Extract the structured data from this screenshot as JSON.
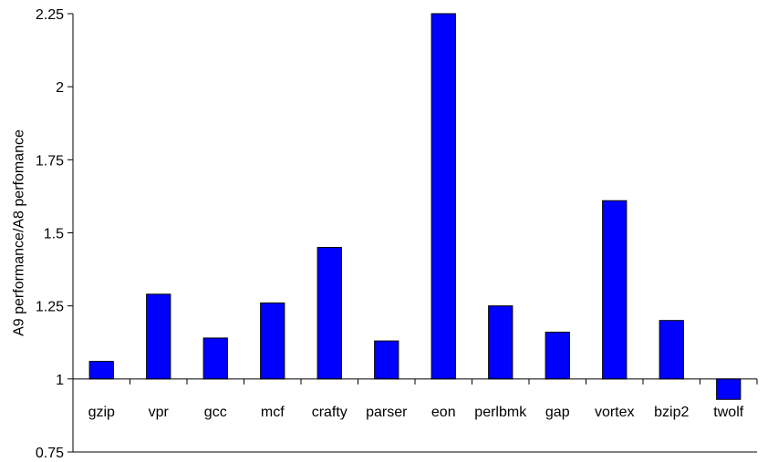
{
  "chart_data": {
    "type": "bar",
    "title": "",
    "xlabel": "",
    "ylabel": "A9 performance/A8 perfomance",
    "ylim": [
      0.75,
      2.25
    ],
    "baseline": 1,
    "yticks": [
      0.75,
      1,
      1.25,
      1.5,
      1.75,
      2,
      2.25
    ],
    "ytick_labels": [
      "0.75",
      "1",
      "1.25",
      "1.5",
      "1.75",
      "2",
      "2.25"
    ],
    "categories": [
      "gzip",
      "vpr",
      "gcc",
      "mcf",
      "crafty",
      "parser",
      "eon",
      "perlbmk",
      "gap",
      "vortex",
      "bzip2",
      "twolf"
    ],
    "values": [
      1.06,
      1.29,
      1.14,
      1.26,
      1.45,
      1.13,
      2.25,
      1.25,
      1.16,
      1.61,
      1.2,
      0.93
    ],
    "bar_color": "#0000FF",
    "grid": false,
    "legend": "none"
  }
}
